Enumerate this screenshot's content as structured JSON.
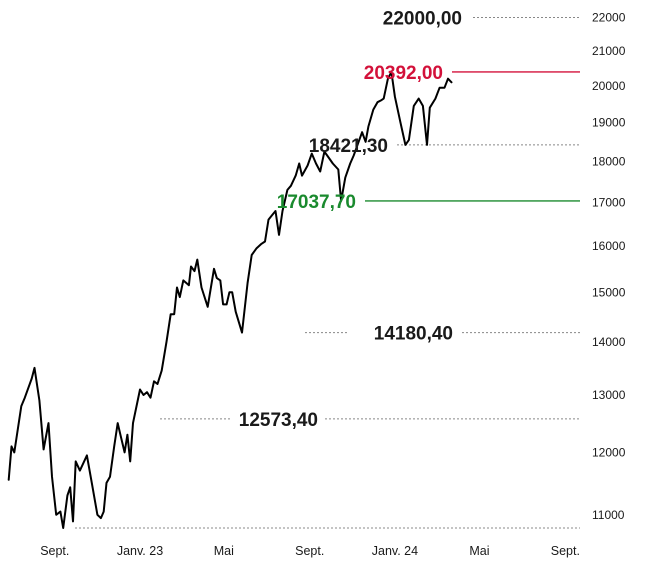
{
  "chart_data": {
    "type": "line",
    "title": "",
    "xlabel": "",
    "ylabel": "",
    "y_scale": "log",
    "ylim": [
      10800,
      22200
    ],
    "y_ticks": [
      11000,
      12000,
      13000,
      14000,
      15000,
      16000,
      17000,
      18000,
      19000,
      20000,
      21000,
      22000
    ],
    "x_ticks": [
      "Sept.",
      "Janv. 23",
      "Mai",
      "Sept.",
      "Janv. 24",
      "Mai",
      "Sept."
    ],
    "x_tick_dates": [
      "2022-09-01",
      "2023-01-01",
      "2023-05-01",
      "2023-09-01",
      "2024-01-01",
      "2024-05-01",
      "2024-09-01"
    ],
    "xlim": [
      "2022-06-26",
      "2024-09-22"
    ],
    "grid": false,
    "colors": {
      "line": "#000000",
      "max": "#d3113a",
      "support": "#1a8a2e",
      "reference": "#888888"
    },
    "series": [
      {
        "values": [
          [
            "2022-06-27",
            11550
          ],
          [
            "2022-07-01",
            12100
          ],
          [
            "2022-07-05",
            12000
          ],
          [
            "2022-07-15",
            12800
          ],
          [
            "2022-07-20",
            12950
          ],
          [
            "2022-07-30",
            13300
          ],
          [
            "2022-08-03",
            13500
          ],
          [
            "2022-08-10",
            12900
          ],
          [
            "2022-08-16",
            12050
          ],
          [
            "2022-08-23",
            12500
          ],
          [
            "2022-08-28",
            11600
          ],
          [
            "2022-09-03",
            11000
          ],
          [
            "2022-09-09",
            11050
          ],
          [
            "2022-09-13",
            10800
          ],
          [
            "2022-09-19",
            11300
          ],
          [
            "2022-09-23",
            11430
          ],
          [
            "2022-09-27",
            10900
          ],
          [
            "2022-10-01",
            11850
          ],
          [
            "2022-10-07",
            11700
          ],
          [
            "2022-10-17",
            11950
          ],
          [
            "2022-10-24",
            11500
          ],
          [
            "2022-11-01",
            11000
          ],
          [
            "2022-11-06",
            10950
          ],
          [
            "2022-11-10",
            11050
          ],
          [
            "2022-11-14",
            11500
          ],
          [
            "2022-11-19",
            11600
          ],
          [
            "2022-11-25",
            12100
          ],
          [
            "2022-11-30",
            12500
          ],
          [
            "2022-12-04",
            12300
          ],
          [
            "2022-12-10",
            12000
          ],
          [
            "2022-12-14",
            12300
          ],
          [
            "2022-12-18",
            11850
          ],
          [
            "2022-12-22",
            12500
          ],
          [
            "2023-01-01",
            13100
          ],
          [
            "2023-01-06",
            13000
          ],
          [
            "2023-01-11",
            13050
          ],
          [
            "2023-01-16",
            12950
          ],
          [
            "2023-01-21",
            13250
          ],
          [
            "2023-01-26",
            13200
          ],
          [
            "2023-02-01",
            13450
          ],
          [
            "2023-02-08",
            14000
          ],
          [
            "2023-02-14",
            14550
          ],
          [
            "2023-02-19",
            14550
          ],
          [
            "2023-02-23",
            15100
          ],
          [
            "2023-02-27",
            14900
          ],
          [
            "2023-03-04",
            15250
          ],
          [
            "2023-03-12",
            15150
          ],
          [
            "2023-03-15",
            15550
          ],
          [
            "2023-03-20",
            15450
          ],
          [
            "2023-03-24",
            15700
          ],
          [
            "2023-03-30",
            15100
          ],
          [
            "2023-04-08",
            14700
          ],
          [
            "2023-04-17",
            15500
          ],
          [
            "2023-04-21",
            15300
          ],
          [
            "2023-04-26",
            15250
          ],
          [
            "2023-04-30",
            14750
          ],
          [
            "2023-05-05",
            14750
          ],
          [
            "2023-05-09",
            15000
          ],
          [
            "2023-05-13",
            15000
          ],
          [
            "2023-05-18",
            14600
          ],
          [
            "2023-05-27",
            14180
          ],
          [
            "2023-06-04",
            15200
          ],
          [
            "2023-06-10",
            15800
          ],
          [
            "2023-06-17",
            15950
          ],
          [
            "2023-06-24",
            16050
          ],
          [
            "2023-06-29",
            16100
          ],
          [
            "2023-07-04",
            16600
          ],
          [
            "2023-07-09",
            16700
          ],
          [
            "2023-07-14",
            16800
          ],
          [
            "2023-07-19",
            16250
          ],
          [
            "2023-07-24",
            16800
          ],
          [
            "2023-07-31",
            17300
          ],
          [
            "2023-08-05",
            17400
          ],
          [
            "2023-08-12",
            17650
          ],
          [
            "2023-08-17",
            17950
          ],
          [
            "2023-08-21",
            17650
          ],
          [
            "2023-08-29",
            17900
          ],
          [
            "2023-09-04",
            18200
          ],
          [
            "2023-09-10",
            17950
          ],
          [
            "2023-09-16",
            17750
          ],
          [
            "2023-09-22",
            18250
          ],
          [
            "2023-09-28",
            18100
          ],
          [
            "2023-10-04",
            17950
          ],
          [
            "2023-10-12",
            17800
          ],
          [
            "2023-10-16",
            17037.7
          ],
          [
            "2023-10-22",
            17600
          ],
          [
            "2023-10-29",
            17950
          ],
          [
            "2023-11-03",
            18150
          ],
          [
            "2023-11-09",
            18450
          ],
          [
            "2023-11-15",
            18750
          ],
          [
            "2023-11-20",
            18500
          ],
          [
            "2023-11-24",
            18900
          ],
          [
            "2023-12-01",
            19350
          ],
          [
            "2023-12-07",
            19550
          ],
          [
            "2023-12-12",
            19600
          ],
          [
            "2023-12-16",
            19650
          ],
          [
            "2023-12-22",
            20200
          ],
          [
            "2023-12-27",
            20392
          ],
          [
            "2024-01-01",
            19700
          ],
          [
            "2024-01-09",
            19000
          ],
          [
            "2024-01-16",
            18421.3
          ],
          [
            "2024-01-21",
            18550
          ],
          [
            "2024-01-28",
            19450
          ],
          [
            "2024-02-04",
            19650
          ],
          [
            "2024-02-10",
            19450
          ],
          [
            "2024-02-16",
            18421.3
          ],
          [
            "2024-02-20",
            19400
          ],
          [
            "2024-02-28",
            19650
          ],
          [
            "2024-03-05",
            19950
          ],
          [
            "2024-03-12",
            19950
          ],
          [
            "2024-03-17",
            20200
          ],
          [
            "2024-03-22",
            20100
          ]
        ]
      }
    ],
    "reference_lines": [
      {
        "value": 22000,
        "label": "22000,00",
        "style": "dotted"
      },
      {
        "value": 20392,
        "label": "20392,00",
        "style": "solid-red"
      },
      {
        "value": 18421.3,
        "label": "18421,30",
        "style": "dotted"
      },
      {
        "value": 17037.7,
        "label": "17037,70",
        "style": "solid-green"
      },
      {
        "value": 14180.4,
        "label": "14180,40",
        "style": "dotted"
      },
      {
        "value": 12573.4,
        "label": "12573,40",
        "style": "dotted"
      },
      {
        "value": 10800,
        "label": "",
        "style": "dotted"
      }
    ]
  }
}
